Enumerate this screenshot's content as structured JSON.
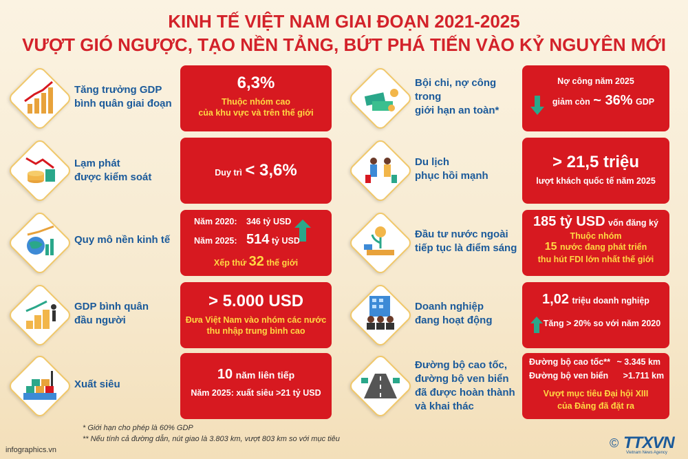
{
  "title": {
    "line1": "KINH TẾ VIỆT NAM GIAI ĐOẠN 2021-2025",
    "line2": "VƯỢT GIÓ NGƯỢC, TẠO NỀN TẢNG, BỨT PHÁ TIẾN VÀO KỶ NGUYÊN MỚI"
  },
  "left": [
    {
      "label": "Tăng trưởng GDP\nbình quân giai đoạn",
      "icon": "growth-chart-icon",
      "value": "6,3%",
      "sub1": "Thuộc nhóm cao",
      "sub2": "của khu vực và trên thế giới"
    },
    {
      "label": "Lạm phát\nđược kiểm soát",
      "icon": "coins-down-icon",
      "prefix": "Duy trì",
      "value": "< 3,6%"
    },
    {
      "label": "Quy mô nền kinh tế",
      "icon": "globe-chart-icon",
      "y2020_label": "Năm 2020:",
      "y2020_value": "346 tỷ USD",
      "y2025_label": "Năm 2025:",
      "y2025_num": "514",
      "y2025_unit": "tỷ USD",
      "rank_pre": "Xếp thứ",
      "rank_num": "32",
      "rank_post": "thế giới"
    },
    {
      "label": "GDP bình quân\nđầu người",
      "icon": "coin-stacks-icon",
      "value": "> 5.000 USD",
      "sub1": "Đưa Việt Nam vào nhóm các nước",
      "sub2": "thu nhập trung bình cao"
    },
    {
      "label": "Xuất siêu",
      "icon": "container-ship-icon",
      "num": "10",
      "num_suffix": "năm liên tiếp",
      "sub": "Năm 2025: xuất siêu >21 tỷ USD"
    }
  ],
  "right": [
    {
      "label": "Bội chi, nợ công\ntrong\ngiới hạn an toàn*",
      "icon": "money-stack-icon",
      "line1": "Nợ công năm 2025",
      "pre": "giảm còn",
      "value": "~ 36%",
      "unit": "GDP"
    },
    {
      "label": "Du lịch\nphục hồi mạnh",
      "icon": "tourists-icon",
      "value": "> 21,5 triệu",
      "sub": "lượt khách quốc tế năm 2025"
    },
    {
      "label": "Đầu tư nước ngoài\ntiếp tục là điểm sáng",
      "icon": "investment-icon",
      "value": "185 tỷ USD",
      "value_suffix": "vốn đăng ký",
      "sub1": "Thuộc nhóm",
      "num": "15",
      "num_suffix": "nước đang phát triển",
      "sub2": "thu hút FDI lớn nhất thế giới"
    },
    {
      "label": "Doanh nghiệp\nđang hoạt động",
      "icon": "business-people-icon",
      "value": "1,02",
      "value_suffix": "triệu doanh nghiệp",
      "sub": "Tăng > 20% so với năm 2020"
    },
    {
      "label": "Đường bộ cao tốc,\nđường bộ ven biển\nđã được hoàn thành\nvà khai thác",
      "icon": "highway-icon",
      "road1_label": "Đường bộ cao tốc**",
      "road1_value": "~ 3.345 km",
      "road2_label": "Đường bộ ven biển",
      "road2_value": ">1.711 km",
      "sub1": "Vượt mục tiêu Đại hội XIII",
      "sub2": "của Đảng đã đặt ra"
    }
  ],
  "footnotes": {
    "f1": "* Giới hạn cho phép là 60% GDP",
    "f2": "** Nếu tính cả đường dẫn, nút giao là 3.803 km, vượt 803 km so với mục tiêu"
  },
  "source": "infographics.vn",
  "brand": {
    "copyright": "©",
    "name": "TTXVN",
    "tagline": "Vietnam News Agency"
  },
  "colors": {
    "red": "#d71920",
    "blue": "#1b5a9a",
    "yellow": "#ffd843",
    "teal": "#2aa78a"
  }
}
